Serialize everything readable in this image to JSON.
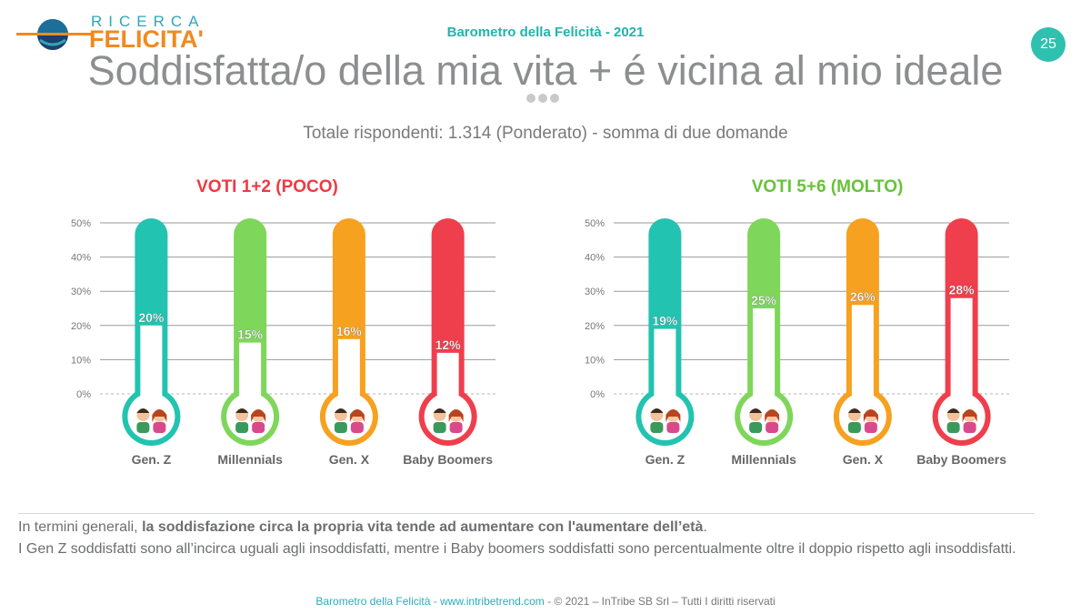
{
  "logo": {
    "line1": "RICERCA",
    "line2": "FELICITA'"
  },
  "header": {
    "title": "Barometro della Felicità - 2021",
    "page_number": "25"
  },
  "main_title": "Soddisfatta/o della mia vita + é vicina al mio ideale",
  "subtitle": "Totale rispondenti: 1.314 (Ponderato) - somma di due domande",
  "chart_data": [
    {
      "type": "bar",
      "title": "VOTI 1+2 (POCO)",
      "title_color": "#ee3a45",
      "categories": [
        "Gen. Z",
        "Millennials",
        "Gen. X",
        "Baby Boomers"
      ],
      "values": [
        20,
        15,
        16,
        12
      ],
      "value_labels": [
        "20%",
        "15%",
        "16%",
        "12%"
      ],
      "colors": [
        "#22c3b0",
        "#7ed65a",
        "#f6a11f",
        "#ef3e4c"
      ],
      "ylim": [
        0,
        50
      ],
      "yticks": [
        "0%",
        "10%",
        "20%",
        "30%",
        "40%",
        "50%"
      ],
      "grid": true,
      "style": "thermometer"
    },
    {
      "type": "bar",
      "title": "VOTI 5+6 (MOLTO)",
      "title_color": "#67c23a",
      "categories": [
        "Gen. Z",
        "Millennials",
        "Gen. X",
        "Baby Boomers"
      ],
      "values": [
        19,
        25,
        26,
        28
      ],
      "value_labels": [
        "19%",
        "25%",
        "26%",
        "28%"
      ],
      "colors": [
        "#22c3b0",
        "#7ed65a",
        "#f6a11f",
        "#ef3e4c"
      ],
      "ylim": [
        0,
        50
      ],
      "yticks": [
        "0%",
        "10%",
        "20%",
        "30%",
        "40%",
        "50%"
      ],
      "grid": true,
      "style": "thermometer"
    }
  ],
  "notes": {
    "line1_prefix": "In termini generali, ",
    "line1_bold": "la soddisfazione circa la propria vita tende ad aumentare con l'aumentare dell’età",
    "line1_suffix": ".",
    "line2": "I Gen Z soddisfatti sono all’incirca uguali agli insoddisfatti, mentre i Baby boomers soddisfatti sono percentualmente oltre il doppio rispetto agli insoddisfatti."
  },
  "footer": {
    "part1": "Barometro della Felicità - www.intribetrend.com",
    "part2": " - © 2021 – InTribe SB Srl – Tutti I diritti riservati"
  },
  "icons": [
    "people-avatar-icon"
  ]
}
